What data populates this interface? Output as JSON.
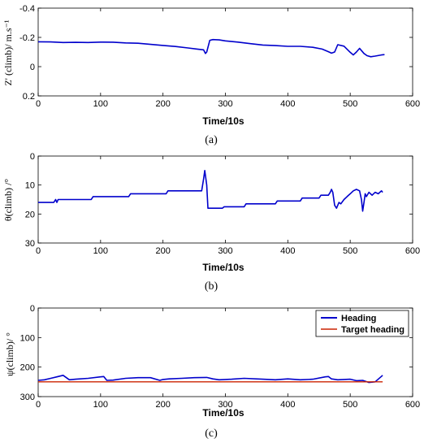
{
  "chart_data": [
    {
      "type": "line",
      "caption": "(a)",
      "xlabel": "Time/10s",
      "ylabel": "Z' (climb)/ m.s⁻¹",
      "xlim": [
        0,
        600
      ],
      "ylim": [
        -0.4,
        0.2
      ],
      "y_reversed": true,
      "xticks": [
        0,
        100,
        200,
        300,
        400,
        500,
        600
      ],
      "yticks": [
        -0.4,
        -0.2,
        0,
        0.2
      ],
      "ytick_labels": [
        "-0.4",
        "-0.2",
        "0",
        "0.2"
      ],
      "grid": false,
      "colors": {
        "series": "#0000cc"
      },
      "series": [
        {
          "x": [
            0,
            20,
            40,
            60,
            80,
            100,
            120,
            140,
            160,
            180,
            200,
            220,
            240,
            255,
            265,
            268,
            270,
            275,
            280,
            290,
            300,
            320,
            340,
            360,
            380,
            400,
            420,
            440,
            455,
            465,
            470,
            475,
            480,
            490,
            500,
            505,
            510,
            515,
            518,
            522,
            527,
            533,
            540,
            550,
            555
          ],
          "y": [
            -0.17,
            -0.169,
            -0.165,
            -0.166,
            -0.165,
            -0.168,
            -0.167,
            -0.162,
            -0.16,
            -0.152,
            -0.145,
            -0.138,
            -0.128,
            -0.12,
            -0.115,
            -0.09,
            -0.1,
            -0.18,
            -0.185,
            -0.183,
            -0.176,
            -0.168,
            -0.157,
            -0.148,
            -0.144,
            -0.139,
            -0.139,
            -0.132,
            -0.12,
            -0.102,
            -0.092,
            -0.1,
            -0.15,
            -0.14,
            -0.098,
            -0.08,
            -0.1,
            -0.125,
            -0.11,
            -0.09,
            -0.075,
            -0.068,
            -0.072,
            -0.08,
            -0.082
          ]
        }
      ]
    },
    {
      "type": "line",
      "caption": "(b)",
      "xlabel": "Time/10s",
      "ylabel": "θ(climb) /°",
      "xlim": [
        0,
        600
      ],
      "ylim": [
        0,
        30
      ],
      "y_reversed": true,
      "xticks": [
        0,
        100,
        200,
        300,
        400,
        500,
        600
      ],
      "yticks": [
        0,
        10,
        20,
        30
      ],
      "ytick_labels": [
        "0",
        "10",
        "20",
        "30"
      ],
      "grid": false,
      "colors": {
        "series": "#0000cc"
      },
      "series": [
        {
          "x": [
            0,
            25,
            28,
            30,
            32,
            85,
            88,
            145,
            148,
            205,
            208,
            262,
            265,
            267,
            270,
            272,
            295,
            298,
            330,
            333,
            380,
            383,
            420,
            423,
            450,
            453,
            465,
            468,
            470,
            472,
            475,
            478,
            482,
            485,
            490,
            495,
            500,
            505,
            510,
            515,
            518,
            520,
            522,
            524,
            526,
            530,
            535,
            540,
            545,
            550,
            552
          ],
          "y": [
            16,
            16,
            15,
            16,
            15,
            15,
            14,
            14,
            13,
            13,
            12,
            12,
            8,
            5,
            10,
            18,
            18,
            17.5,
            17.5,
            16.5,
            16.5,
            15.5,
            15.5,
            14.5,
            14.5,
            13.5,
            13.5,
            12.5,
            11.5,
            12.5,
            17,
            18,
            16,
            16.5,
            15,
            14,
            13,
            12,
            11.5,
            12,
            15,
            19,
            16,
            13,
            14,
            12.5,
            13.5,
            12.5,
            13,
            12,
            12.5
          ]
        }
      ]
    },
    {
      "type": "line",
      "caption": "(c)",
      "xlabel": "Time/10s",
      "ylabel": "ψ(climb)/ °",
      "xlim": [
        0,
        600
      ],
      "ylim": [
        0,
        300
      ],
      "y_reversed": true,
      "xticks": [
        0,
        100,
        200,
        300,
        400,
        500,
        600
      ],
      "yticks": [
        0,
        100,
        200,
        300
      ],
      "ytick_labels": [
        "0",
        "100",
        "200",
        "300"
      ],
      "grid": false,
      "legend": "top-right",
      "colors": {
        "series0": "#0000cc",
        "series1": "#cc2200"
      },
      "series": [
        {
          "name": "Heading",
          "x": [
            0,
            10,
            20,
            30,
            40,
            50,
            60,
            80,
            100,
            105,
            110,
            120,
            140,
            160,
            180,
            195,
            200,
            210,
            230,
            250,
            270,
            280,
            290,
            310,
            330,
            360,
            380,
            400,
            420,
            440,
            460,
            465,
            470,
            480,
            500,
            510,
            520,
            530,
            540,
            552
          ],
          "y": [
            245,
            243,
            238,
            233,
            228,
            243,
            241,
            238,
            233,
            232,
            245,
            244,
            238,
            236,
            236,
            245,
            242,
            240,
            238,
            236,
            235,
            240,
            243,
            241,
            238,
            241,
            243,
            240,
            243,
            241,
            233,
            232,
            240,
            243,
            241,
            246,
            245,
            252,
            250,
            228
          ]
        },
        {
          "name": "Target heading",
          "x": [
            0,
            552
          ],
          "y": [
            250,
            250
          ]
        }
      ]
    }
  ]
}
